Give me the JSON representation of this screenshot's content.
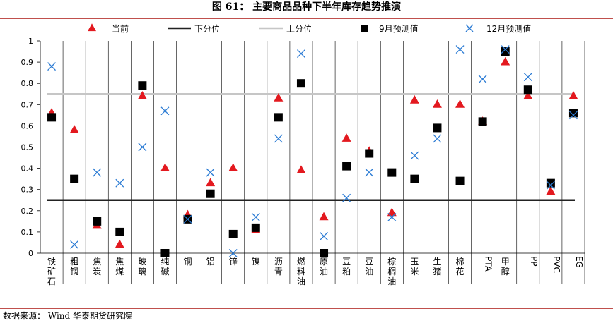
{
  "title": "图 61： 主要商品品种下半年库存趋势推演",
  "source": "数据来源： Wind  华泰期货研究院",
  "colors": {
    "current": "#e3191f",
    "lower": "#222222",
    "upper": "#c6c6c6",
    "sep": "#000000",
    "dec": "#2b7bd4",
    "rule": "#c0504d"
  },
  "chart_data": {
    "type": "scatter",
    "title": "",
    "xlabel": "",
    "ylabel": "",
    "ylim": [
      0,
      1
    ],
    "yticks": [
      "0",
      "0.1",
      "0.2",
      "0.3",
      "0.4",
      "0.5",
      "0.6",
      "0.7",
      "0.8",
      "0.9",
      "1"
    ],
    "categories": [
      "铁矿石",
      "粗钢",
      "焦炭",
      "焦煤",
      "玻璃",
      "纯碱",
      "铜",
      "铝",
      "锌",
      "镍",
      "沥青",
      "燃料油",
      "原油",
      "豆粕",
      "豆油",
      "棕榈油",
      "玉米",
      "生猪",
      "棉花",
      "PTA",
      "甲醇",
      "PP",
      "PVC",
      "EG"
    ],
    "legend": {
      "position": "top",
      "labels": [
        "当前",
        "下分位",
        "上分位",
        "9月预测值",
        "12月预测值"
      ]
    },
    "grid": "vertical separators",
    "series": [
      {
        "name": "当前",
        "marker": "triangle",
        "values": [
          0.66,
          0.58,
          0.13,
          0.04,
          0.74,
          0.4,
          0.18,
          0.33,
          0.4,
          0.11,
          0.73,
          0.39,
          0.17,
          0.54,
          0.48,
          0.19,
          0.72,
          0.7,
          0.7,
          0.62,
          0.9,
          0.74,
          0.29,
          0.74
        ]
      },
      {
        "name": "下分位",
        "type": "hline",
        "value": 0.25
      },
      {
        "name": "上分位",
        "type": "hline",
        "value": 0.75
      },
      {
        "name": "9月预测值",
        "marker": "square",
        "values": [
          0.64,
          0.35,
          0.15,
          0.1,
          0.79,
          0.0,
          0.16,
          0.28,
          0.09,
          0.12,
          0.64,
          0.8,
          0.0,
          0.41,
          0.47,
          0.38,
          0.35,
          0.59,
          0.34,
          0.62,
          0.95,
          0.77,
          0.33,
          0.66
        ]
      },
      {
        "name": "12月预测值",
        "marker": "x",
        "values": [
          0.88,
          0.04,
          0.38,
          0.33,
          0.5,
          0.67,
          0.16,
          0.38,
          0.0,
          0.17,
          0.54,
          0.94,
          0.08,
          0.26,
          0.38,
          0.17,
          0.46,
          0.54,
          0.96,
          0.82,
          0.96,
          0.83,
          0.32,
          0.65
        ]
      }
    ]
  }
}
